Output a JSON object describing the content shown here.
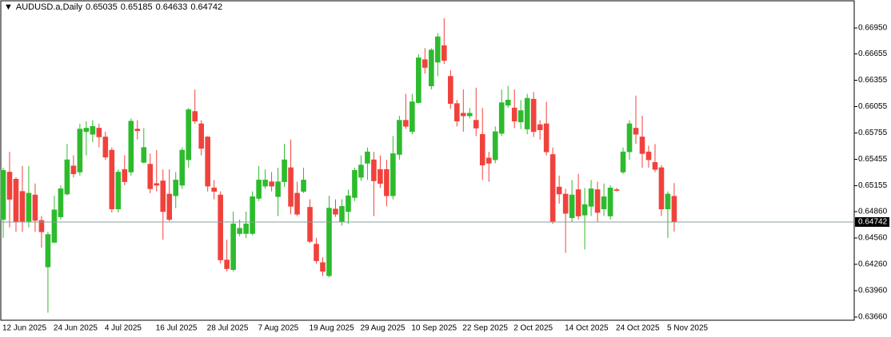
{
  "chart_data": {
    "type": "candlestick",
    "title": "AUDUSD.a,Daily",
    "categories": [
      "12 Jun 2025",
      null,
      null,
      null,
      null,
      null,
      null,
      null,
      "24 Jun 2025",
      null,
      null,
      null,
      null,
      null,
      null,
      null,
      "4 Jul 2025",
      null,
      null,
      null,
      null,
      null,
      null,
      null,
      "16 Jul 2025",
      null,
      null,
      null,
      null,
      null,
      null,
      null,
      "28 Jul 2025",
      null,
      null,
      null,
      null,
      null,
      null,
      null,
      "7 Aug 2025",
      null,
      null,
      null,
      null,
      null,
      null,
      null,
      "19 Aug 2025",
      null,
      null,
      null,
      null,
      null,
      null,
      null,
      "29 Aug 2025",
      null,
      null,
      null,
      null,
      null,
      null,
      null,
      "10 Sep 2025",
      null,
      null,
      null,
      null,
      null,
      null,
      null,
      "22 Sep 2025",
      null,
      null,
      null,
      null,
      null,
      null,
      null,
      "2 Oct 2025",
      null,
      null,
      null,
      null,
      null,
      null,
      null,
      "14 Oct 2025",
      null,
      null,
      null,
      null,
      null,
      null,
      null,
      "24 Oct 2025",
      null,
      null,
      null,
      null,
      null,
      null,
      null,
      "5 Nov 2025",
      null
    ],
    "open": [
      0.6477,
      0.6531,
      0.6523,
      0.6509,
      0.6475,
      0.6505,
      0.6476,
      0.6423,
      0.6451,
      0.648,
      0.6506,
      0.6538,
      0.6531,
      0.6577,
      0.6574,
      0.6581,
      0.6571,
      0.6556,
      0.6489,
      0.6534,
      0.6531,
      0.658,
      0.6542,
      0.654,
      0.6518,
      0.6521,
      0.6506,
      0.6504,
      0.6516,
      0.6545,
      0.66,
      0.6586,
      0.6571,
      0.6513,
      0.6505,
      0.6431,
      0.642,
      0.6461,
      0.6461,
      0.6461,
      0.6501,
      0.6515,
      0.652,
      0.6503,
      0.652,
      0.6536,
      0.6507,
      0.6509,
      0.6491,
      0.6449,
      0.6428,
      0.6413,
      0.6489,
      0.6474,
      0.6486,
      0.6502,
      0.6525,
      0.6541,
      0.6545,
      0.6534,
      0.6534,
      0.6504,
      0.6551,
      0.659,
      0.6577,
      0.661,
      0.6659,
      0.6629,
      0.6656,
      0.6675,
      0.664,
      0.6609,
      0.6598,
      0.6595,
      0.659,
      0.6574,
      0.6547,
      0.6545,
      0.6575,
      0.6607,
      0.6604,
      0.6588,
      0.658,
      0.6614,
      0.6585,
      0.6586,
      0.6551,
      0.6514,
      0.6506,
      0.6479,
      0.6511,
      0.6482,
      0.6492,
      0.6511,
      0.6489,
      0.6481,
      0.6511,
      0.6531,
      0.6554,
      0.6581,
      0.6571,
      0.6554,
      0.6542,
      0.6536,
      0.6489,
      0.65035
    ],
    "high": [
      0.6536,
      0.6554,
      0.6525,
      0.6538,
      0.6538,
      0.6518,
      0.6481,
      0.6463,
      0.6504,
      0.6516,
      0.6563,
      0.655,
      0.6586,
      0.6589,
      0.659,
      0.6586,
      0.6577,
      0.6559,
      0.6534,
      0.655,
      0.6592,
      0.659,
      0.6581,
      0.6552,
      0.6556,
      0.6534,
      0.6534,
      0.6531,
      0.6559,
      0.6604,
      0.6625,
      0.659,
      0.6572,
      0.6522,
      0.6509,
      0.6454,
      0.6486,
      0.6477,
      0.6486,
      0.6509,
      0.6538,
      0.6534,
      0.6531,
      0.6536,
      0.6563,
      0.6568,
      0.652,
      0.6536,
      0.65,
      0.6456,
      0.6434,
      0.6504,
      0.65,
      0.65,
      0.6511,
      0.6536,
      0.655,
      0.6559,
      0.6554,
      0.655,
      0.6545,
      0.6572,
      0.6595,
      0.662,
      0.662,
      0.6665,
      0.6672,
      0.6672,
      0.6689,
      0.6706,
      0.6647,
      0.6613,
      0.6625,
      0.6604,
      0.6627,
      0.6604,
      0.6554,
      0.6583,
      0.6625,
      0.6629,
      0.6625,
      0.6613,
      0.662,
      0.6622,
      0.659,
      0.6611,
      0.6559,
      0.6527,
      0.6512,
      0.6522,
      0.6529,
      0.6513,
      0.6522,
      0.652,
      0.6518,
      0.6516,
      0.6513,
      0.6559,
      0.659,
      0.6618,
      0.6595,
      0.6561,
      0.6563,
      0.6539,
      0.6509,
      0.65185
    ],
    "low": [
      0.6456,
      0.6468,
      0.6463,
      0.6463,
      0.6468,
      0.6463,
      0.6445,
      0.6371,
      0.645,
      0.6477,
      0.6504,
      0.6525,
      0.6527,
      0.655,
      0.6565,
      0.6559,
      0.6545,
      0.6485,
      0.6485,
      0.6516,
      0.6527,
      0.6568,
      0.6541,
      0.6507,
      0.6509,
      0.6454,
      0.6475,
      0.649,
      0.6512,
      0.6536,
      0.6586,
      0.655,
      0.6509,
      0.65,
      0.6427,
      0.6418,
      0.6418,
      0.6458,
      0.6456,
      0.6459,
      0.6498,
      0.6512,
      0.6509,
      0.6481,
      0.6514,
      0.6483,
      0.6481,
      0.6507,
      0.645,
      0.6427,
      0.6413,
      0.6411,
      0.648,
      0.647,
      0.6472,
      0.6498,
      0.6521,
      0.6522,
      0.6481,
      0.6513,
      0.6492,
      0.65,
      0.6545,
      0.658,
      0.6574,
      0.6609,
      0.6643,
      0.6625,
      0.664,
      0.6654,
      0.6603,
      0.6583,
      0.6577,
      0.6592,
      0.6572,
      0.6522,
      0.652,
      0.6541,
      0.6572,
      0.6604,
      0.6581,
      0.658,
      0.6574,
      0.6571,
      0.6568,
      0.655,
      0.6472,
      0.6495,
      0.6439,
      0.6474,
      0.6477,
      0.6443,
      0.6481,
      0.6474,
      0.6481,
      0.6477,
      0.6509,
      0.6529,
      0.6545,
      0.6563,
      0.6536,
      0.6536,
      0.6531,
      0.6481,
      0.6456,
      0.64633
    ],
    "close": [
      0.6533,
      0.65,
      0.6474,
      0.6475,
      0.6507,
      0.6476,
      0.6463,
      0.646,
      0.6488,
      0.6512,
      0.6545,
      0.6529,
      0.658,
      0.6581,
      0.6583,
      0.6571,
      0.6548,
      0.6489,
      0.6531,
      0.652,
      0.6589,
      0.6578,
      0.6559,
      0.6512,
      0.6516,
      0.6486,
      0.6477,
      0.6522,
      0.6556,
      0.6602,
      0.6589,
      0.6558,
      0.6515,
      0.6509,
      0.6431,
      0.6421,
      0.6472,
      0.6467,
      0.6472,
      0.6503,
      0.6522,
      0.6522,
      0.6515,
      0.652,
      0.6545,
      0.6492,
      0.6483,
      0.6522,
      0.6452,
      0.643,
      0.6418,
      0.649,
      0.6483,
      0.6492,
      0.6504,
      0.6533,
      0.6539,
      0.6554,
      0.6521,
      0.6518,
      0.6504,
      0.6552,
      0.659,
      0.6583,
      0.6611,
      0.6661,
      0.665,
      0.667,
      0.6685,
      0.6658,
      0.6609,
      0.6589,
      0.6595,
      0.6598,
      0.6581,
      0.6539,
      0.6541,
      0.6577,
      0.661,
      0.6613,
      0.6589,
      0.6601,
      0.6615,
      0.6577,
      0.6579,
      0.6554,
      0.6475,
      0.6506,
      0.6484,
      0.6505,
      0.6481,
      0.6494,
      0.6512,
      0.6485,
      0.6503,
      0.6513,
      0.651,
      0.6554,
      0.6586,
      0.6574,
      0.6552,
      0.6545,
      0.6534,
      0.6489,
      0.6506,
      0.64742
    ],
    "up_color": "#2dbb2d",
    "down_color": "#f0423c",
    "last_line_color": "#8a9f9a",
    "ylim": [
      0.63633,
      0.67241
    ],
    "yticks": [
      {
        "value": 0.6695,
        "label": "0.66950"
      },
      0.66655,
      0.66355,
      0.66055,
      0.65755,
      0.65455,
      0.65155,
      {
        "value": 0.6486,
        "label": "0.64860"
      },
      {
        "value": 0.6456,
        "label": "0.64560"
      },
      {
        "value": 0.6426,
        "label": "0.64260"
      },
      {
        "value": 0.6396,
        "label": "0.63960"
      },
      {
        "value": 0.6366,
        "label": "0.63660"
      }
    ]
  }
}
